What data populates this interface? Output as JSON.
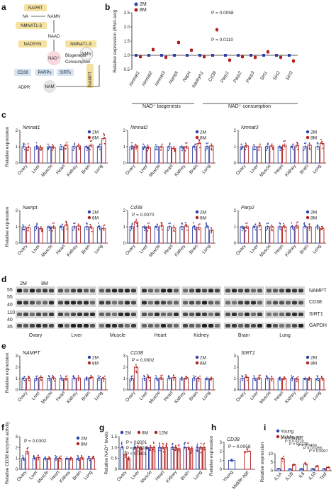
{
  "colors": {
    "young": "#2b3fa8",
    "old": "#b0201e",
    "yellow": "#f6e2a0",
    "blue": "#d4e4f4",
    "pink": "#f8d7dd",
    "gray": "#e4e4e4"
  },
  "panel_labels": [
    "a",
    "b",
    "c",
    "d",
    "e",
    "f",
    "g",
    "h",
    "i"
  ],
  "legend": {
    "m2": "2M",
    "m8": "8M",
    "m12": "12M",
    "young": "Young",
    "middle": "Middle age"
  },
  "tissues": [
    "Ovary",
    "Liver",
    "Muscle",
    "Heart",
    "Kidney",
    "Brain",
    "Lung"
  ],
  "pathway": {
    "naprt": "NAPRT",
    "na": "NA",
    "namn": "NAMN",
    "nmnat13a": "NMNAT1-3",
    "naad": "NAAD",
    "nadsyn": "NADSYN",
    "nmnat13b": "NMNAT1-3",
    "nmn": "NMN",
    "nad": "NAD⁺",
    "biogenesis": "Biogenesis",
    "consumption": "Consumption",
    "cd38": "CD38",
    "parps": "PARPs",
    "sirts": "SIRTs",
    "adpr": "ADPR",
    "nam": "NAM",
    "nampt": "NAMPT"
  },
  "chart_data": [
    {
      "panel": "b",
      "type": "scatter",
      "categories": [
        "Nmnat1",
        "Nmnat2",
        "Nmnat3",
        "Nampt",
        "Naprt",
        "Nadsyn1",
        "Cd38",
        "Parp1",
        "Parp2",
        "Parp3",
        "Sirt1",
        "Sirt2",
        "Sirt3"
      ],
      "series": [
        {
          "name": "2M",
          "values": [
            1,
            1,
            1,
            1,
            1,
            1,
            1,
            1,
            1,
            1,
            1,
            1,
            1
          ]
        },
        {
          "name": "8M",
          "values": [
            0.95,
            1.2,
            0.93,
            1.45,
            1.18,
            0.95,
            1.9,
            0.83,
            0.95,
            0.93,
            1.12,
            0.93,
            0.8
          ]
        }
      ],
      "ylabel": "Relative expression (RNA-seq)",
      "ylim": [
        0.5,
        2.5
      ],
      "yticks": [
        "0.5",
        "1.0",
        "1.5",
        "2.0",
        "2.5"
      ],
      "annotations": [
        "P = 0.0058",
        "P = 0.0110"
      ],
      "groups": [
        "NAD⁺ biogenesis",
        "NAD⁺ consumption"
      ]
    },
    {
      "panel": "c",
      "type": "bar",
      "title": "Nmnat1",
      "ylabel": "Relative expression",
      "ylim": [
        0,
        2
      ],
      "yticks": [
        "0",
        "1",
        "2"
      ],
      "series": [
        {
          "name": "2M",
          "values": [
            1,
            1,
            1,
            1,
            1,
            1,
            1
          ]
        },
        {
          "name": "8M",
          "values": [
            0.95,
            0.95,
            0.98,
            1.1,
            1.05,
            1.1,
            1.5
          ]
        }
      ]
    },
    {
      "panel": "c",
      "type": "bar",
      "title": "Nmnat2",
      "ylim": [
        0,
        2
      ],
      "yticks": [
        "0",
        "1",
        "2"
      ],
      "series": [
        {
          "name": "2M",
          "values": [
            1,
            1,
            1,
            1,
            1,
            1,
            1
          ]
        },
        {
          "name": "8M",
          "values": [
            1.05,
            0.95,
            1,
            0.9,
            1.0,
            1.2,
            1.05
          ]
        }
      ]
    },
    {
      "panel": "c",
      "type": "bar",
      "title": "Nmnat3",
      "ylim": [
        0,
        2
      ],
      "yticks": [
        "0",
        "1",
        "2"
      ],
      "series": [
        {
          "name": "2M",
          "values": [
            1,
            1,
            1,
            1,
            1,
            1,
            1
          ]
        },
        {
          "name": "8M",
          "values": [
            1.05,
            1.0,
            1.05,
            1.1,
            1.05,
            1.1,
            1.2
          ]
        }
      ]
    },
    {
      "panel": "c",
      "type": "bar",
      "title": "Nampt",
      "ylabel": "Relative expression",
      "ylim": [
        0,
        2
      ],
      "yticks": [
        "0",
        "1",
        "2"
      ],
      "series": [
        {
          "name": "2M",
          "values": [
            1,
            1,
            1,
            1,
            1,
            1,
            1
          ]
        },
        {
          "name": "8M",
          "values": [
            0.95,
            0.9,
            1.0,
            1.1,
            1.05,
            0.95,
            0.9
          ]
        }
      ]
    },
    {
      "panel": "c",
      "type": "bar",
      "title": "Cd38",
      "ylim": [
        0,
        2
      ],
      "yticks": [
        "0",
        "1",
        "2"
      ],
      "annotation": "P = 0.0070",
      "series": [
        {
          "name": "2M",
          "values": [
            1,
            1,
            1,
            1,
            1,
            1,
            1
          ]
        },
        {
          "name": "8M",
          "values": [
            1.3,
            1.0,
            1.05,
            0.95,
            1.05,
            0.95,
            0.8
          ]
        }
      ]
    },
    {
      "panel": "c",
      "type": "bar",
      "title": "Parp2",
      "ylim": [
        0,
        2
      ],
      "yticks": [
        "0",
        "1",
        "2"
      ],
      "series": [
        {
          "name": "2M",
          "values": [
            1,
            1,
            1,
            1,
            1,
            1,
            1
          ]
        },
        {
          "name": "8M",
          "values": [
            1.0,
            1.05,
            1.0,
            1.0,
            1.05,
            1.0,
            0.9
          ]
        }
      ]
    },
    {
      "panel": "e",
      "type": "bar",
      "title": "NAMPT",
      "ylabel": "Relative expression",
      "ylim": [
        0,
        3
      ],
      "yticks": [
        "0",
        "1",
        "2",
        "3"
      ],
      "series": [
        {
          "name": "2M",
          "values": [
            1,
            1,
            1,
            1,
            1,
            1,
            1
          ]
        },
        {
          "name": "8M",
          "values": [
            1.0,
            1.1,
            1.05,
            1.0,
            1.05,
            1.1,
            1.0
          ]
        }
      ]
    },
    {
      "panel": "e",
      "type": "bar",
      "title": "CD38",
      "ylim": [
        0,
        3
      ],
      "yticks": [
        "0",
        "1",
        "2",
        "3"
      ],
      "annotation": "P = 0.0002",
      "series": [
        {
          "name": "2M",
          "values": [
            1,
            1,
            1,
            1,
            1,
            1,
            1
          ]
        },
        {
          "name": "8M",
          "values": [
            2.0,
            1.1,
            1.05,
            1.1,
            1.05,
            1.0,
            1.0
          ]
        }
      ]
    },
    {
      "panel": "e",
      "type": "bar",
      "title": "SIRT1",
      "ylim": [
        0,
        3
      ],
      "yticks": [
        "0",
        "1",
        "2",
        "3"
      ],
      "series": [
        {
          "name": "2M",
          "values": [
            1,
            1,
            1,
            1,
            1,
            1,
            1
          ]
        },
        {
          "name": "8M",
          "values": [
            1.1,
            1.05,
            1.0,
            1.0,
            0.95,
            1.0,
            1.0
          ]
        }
      ]
    },
    {
      "panel": "f",
      "type": "bar",
      "ylabel": "Relative CD38 enzyme activity",
      "ylim": [
        0,
        3
      ],
      "yticks": [
        "0",
        "1",
        "2",
        "3"
      ],
      "annotation": "P = 0.0302",
      "series": [
        {
          "name": "2M",
          "values": [
            1,
            1,
            1,
            1,
            1,
            1,
            1
          ]
        },
        {
          "name": "8M",
          "values": [
            1.6,
            1.1,
            1.0,
            1.0,
            1.0,
            1.05,
            1.0
          ]
        }
      ]
    },
    {
      "panel": "g",
      "type": "bar",
      "ylabel": "Relative NAD⁺ levels",
      "ylim": [
        0,
        1.5
      ],
      "yticks": [
        "0",
        "0.5",
        "1.0",
        "1.5"
      ],
      "annotations": [
        "P < 0.0001",
        "P = 0.0093",
        "P < 0.0001"
      ],
      "series": [
        {
          "name": "2M",
          "values": [
            1,
            1,
            1,
            1,
            1,
            1,
            1
          ]
        },
        {
          "name": "8M",
          "values": [
            0.7,
            1.0,
            1.0,
            1.0,
            1.0,
            1.0,
            1.0
          ]
        },
        {
          "name": "12M",
          "values": [
            0.5,
            0.95,
            1.0,
            1.0,
            0.95,
            0.95,
            1.0
          ]
        }
      ]
    },
    {
      "panel": "h",
      "type": "bar",
      "title": "CD38",
      "ylabel": "Relative expression",
      "ylim": [
        0,
        3
      ],
      "yticks": [
        "0",
        "1",
        "2",
        "3"
      ],
      "annotation": "P = 0.0058",
      "categories": [
        "Young",
        "Middle age"
      ],
      "values": [
        1.0,
        2.0
      ]
    },
    {
      "panel": "i",
      "type": "bar",
      "ylabel": "Relative expression",
      "ylim": [
        0,
        10
      ],
      "yticks": [
        "0",
        "5",
        "10"
      ],
      "categories": [
        "IL1A",
        "IL1B",
        "IL6",
        "IL10",
        "TNF"
      ],
      "annotations": [
        "P = 0.0417",
        "P = 0.0270",
        "P = 0.0128",
        "P = 0.0400",
        "P = 0.0255",
        "P = 0.0007"
      ],
      "series": [
        {
          "name": "Young",
          "values": [
            1,
            1,
            1,
            1,
            1
          ]
        },
        {
          "name": "Middle age",
          "values": [
            7,
            3.5,
            4,
            2.5,
            2
          ]
        }
      ]
    }
  ],
  "western": {
    "mw": [
      "55",
      "55",
      "40",
      "110",
      "40",
      "35"
    ],
    "targets": [
      "NAMPT",
      "CD38",
      "SIRT1",
      "GAPDH"
    ],
    "groups": [
      "2M",
      "8M"
    ]
  },
  "group_labels": {
    "biogenesis": "NAD⁺ biogenesis",
    "consumption": "NAD⁺ consumption"
  }
}
